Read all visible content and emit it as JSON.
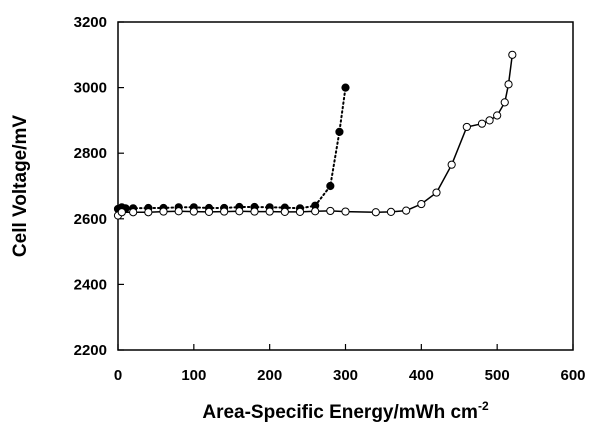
{
  "chart_data": {
    "type": "line",
    "xlabel": "Area-Specific Energy/mWh cm",
    "xlabel_sup": "-2",
    "ylabel": "Cell Voltage/mV",
    "xlim": [
      0,
      600
    ],
    "ylim": [
      2200,
      3200
    ],
    "xticks": [
      0,
      100,
      200,
      300,
      400,
      500,
      600
    ],
    "yticks": [
      2200,
      2400,
      2600,
      2800,
      3000,
      3200
    ],
    "grid": false,
    "legend": "none",
    "series": [
      {
        "marker": "filled-circle",
        "line_style": "dotted",
        "color": "#000000",
        "x": [
          0,
          5,
          10,
          20,
          40,
          60,
          80,
          100,
          120,
          140,
          160,
          180,
          200,
          220,
          240,
          260,
          280,
          292,
          300
        ],
        "y": [
          2630,
          2635,
          2632,
          2632,
          2633,
          2633,
          2635,
          2635,
          2633,
          2633,
          2636,
          2636,
          2635,
          2634,
          2632,
          2640,
          2700,
          2865,
          3000
        ]
      },
      {
        "marker": "open-circle",
        "line_style": "solid",
        "color": "#000000",
        "x": [
          0,
          5,
          20,
          40,
          60,
          80,
          100,
          120,
          140,
          160,
          180,
          200,
          220,
          240,
          260,
          280,
          300,
          340,
          360,
          380,
          400,
          420,
          440,
          460,
          480,
          490,
          500,
          510,
          515,
          520
        ],
        "y": [
          2610,
          2620,
          2620,
          2620,
          2622,
          2623,
          2622,
          2621,
          2622,
          2623,
          2622,
          2622,
          2621,
          2621,
          2623,
          2624,
          2622,
          2620,
          2621,
          2625,
          2645,
          2680,
          2765,
          2880,
          2890,
          2900,
          2915,
          2955,
          3010,
          3100
        ]
      }
    ]
  }
}
